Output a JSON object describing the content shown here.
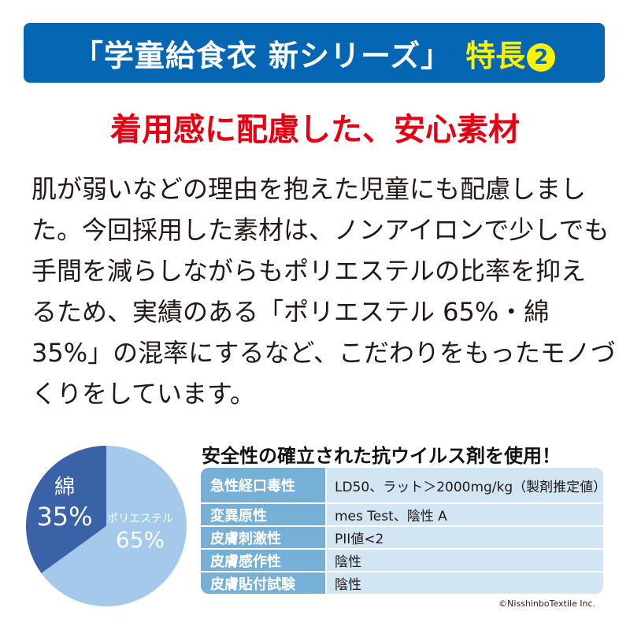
{
  "banner": {
    "title": "「学童給食衣 新シリーズ」",
    "feature_label": "特長",
    "feature_number": "2",
    "background_color": "#0566b4",
    "accent_color": "#fff200"
  },
  "headline": {
    "text": "着用感に配慮した、安心素材",
    "color": "#e50012"
  },
  "body_lines": [
    "肌が弱いなどの理由を抱えた児童にも配慮しまし",
    "た。今回採用した素材は、ノンアイロンで少しでも",
    "手間を減らしながらもポリエステルの比率を抑え",
    "るため、実績のある「ポリエステル 65%・綿",
    "35%」の混率にするなど、こだわりをもったモノづ",
    "くりをしています。"
  ],
  "chart_data": {
    "type": "pie",
    "slices": [
      {
        "name": "綿",
        "value": 35,
        "label": "35%",
        "color": "#3a62a6"
      },
      {
        "name": "ポリエステル",
        "value": 65,
        "label": "65%",
        "color": "#a4c9ea"
      }
    ]
  },
  "safety": {
    "title": "安全性の確立された抗ウイルス剤を使用！",
    "rows": [
      {
        "test": "急性経口毒性",
        "result": "LD50、ラット＞2000mg/kg（製剤推定値）"
      },
      {
        "test": "変異原性",
        "result": "mes Test、陰性 A"
      },
      {
        "test": "皮膚刺激性",
        "result": "PII値<2"
      },
      {
        "test": "皮膚感作性",
        "result": "陰性"
      },
      {
        "test": "皮膚貼付試験",
        "result": "陰性"
      }
    ]
  },
  "copyright": "©NisshinboTextile Inc."
}
